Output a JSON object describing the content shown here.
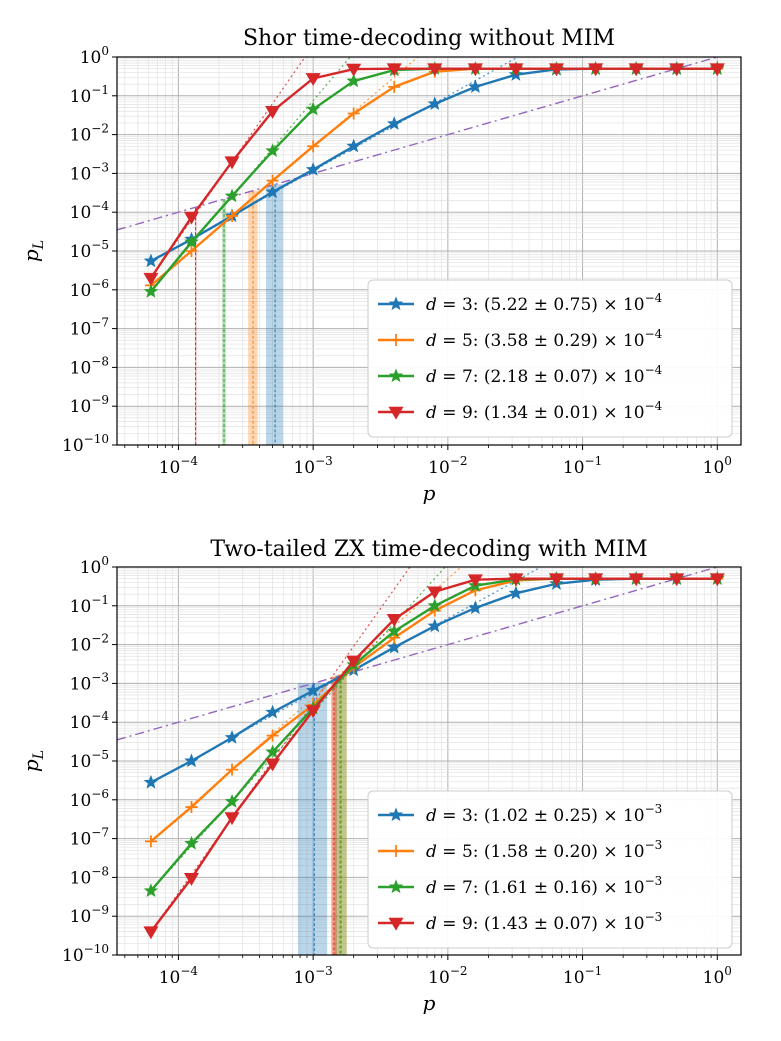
{
  "chart_data": [
    {
      "type": "line",
      "title": "Shor time-decoding without MIM",
      "xlabel": "p",
      "ylabel": "p_L",
      "xscale": "log",
      "yscale": "log",
      "xlim": [
        3.5e-05,
        1.5
      ],
      "ylim": [
        1e-10,
        1
      ],
      "xticks": [
        {
          "base": "10",
          "exp": "−4",
          "value": 0.0001
        },
        {
          "base": "10",
          "exp": "−3",
          "value": 0.001
        },
        {
          "base": "10",
          "exp": "−2",
          "value": 0.01
        },
        {
          "base": "10",
          "exp": "−1",
          "value": 0.1
        },
        {
          "base": "10",
          "exp": "0",
          "value": 1
        }
      ],
      "yticks": [
        {
          "base": "10",
          "exp": "−10",
          "value": 1e-10
        },
        {
          "base": "10",
          "exp": "−9",
          "value": 1e-09
        },
        {
          "base": "10",
          "exp": "−8",
          "value": 1e-08
        },
        {
          "base": "10",
          "exp": "−7",
          "value": 1e-07
        },
        {
          "base": "10",
          "exp": "−6",
          "value": 1e-06
        },
        {
          "base": "10",
          "exp": "−5",
          "value": 1e-05
        },
        {
          "base": "10",
          "exp": "−4",
          "value": 0.0001
        },
        {
          "base": "10",
          "exp": "−3",
          "value": 0.001
        },
        {
          "base": "10",
          "exp": "−2",
          "value": 0.01
        },
        {
          "base": "10",
          "exp": "−1",
          "value": 0.1
        },
        {
          "base": "10",
          "exp": "0",
          "value": 1
        }
      ],
      "legend_position": "lower-right",
      "reference_line": {
        "name": "p_L = p",
        "style": "dash-dot",
        "color": "#9467bd"
      },
      "series": [
        {
          "name": "d = 3",
          "label_left": "d = 3: ",
          "label_value": "(5.22 ± 0.75) × 10",
          "label_exp": "−4",
          "color": "#1f77b4",
          "marker": "star",
          "x": [
            6.25e-05,
            0.000125,
            0.00025,
            0.0005,
            0.001,
            0.002,
            0.004,
            0.008,
            0.016,
            0.032,
            0.064,
            0.125,
            0.25,
            0.5,
            1.0
          ],
          "y": [
            5.5e-06,
            2e-05,
            8e-05,
            0.00033,
            0.00125,
            0.005,
            0.019,
            0.062,
            0.17,
            0.35,
            0.48,
            0.5,
            0.5,
            0.5,
            0.5
          ],
          "threshold": 0.000522,
          "threshold_band": [
            0.000447,
            0.000597
          ]
        },
        {
          "name": "d = 5",
          "label_left": "d = 5: ",
          "label_value": "(3.58 ± 0.29) × 10",
          "label_exp": "−4",
          "color": "#ff7f0e",
          "marker": "plus",
          "x": [
            6.25e-05,
            0.000125,
            0.00025,
            0.0005,
            0.001,
            0.002,
            0.004,
            0.008,
            0.016,
            0.032,
            0.064,
            0.125,
            0.25,
            0.5,
            1.0
          ],
          "y": [
            1.3e-06,
            1e-05,
            8e-05,
            0.00065,
            0.005,
            0.035,
            0.17,
            0.42,
            0.5,
            0.5,
            0.5,
            0.5,
            0.5,
            0.5,
            0.5
          ],
          "threshold": 0.000358,
          "threshold_band": [
            0.000329,
            0.000387
          ]
        },
        {
          "name": "d = 7",
          "label_left": "d = 7: ",
          "label_value": "(2.18 ± 0.07) × 10",
          "label_exp": "−4",
          "color": "#2ca02c",
          "marker": "star",
          "x": [
            6.25e-05,
            0.000125,
            0.00025,
            0.0005,
            0.001,
            0.002,
            0.004,
            0.008,
            0.016,
            0.032,
            0.064,
            0.125,
            0.25,
            0.5,
            1.0
          ],
          "y": [
            9e-07,
            1.7e-05,
            0.00026,
            0.0038,
            0.045,
            0.24,
            0.46,
            0.5,
            0.5,
            0.5,
            0.5,
            0.5,
            0.5,
            0.5,
            0.5
          ],
          "threshold": 0.000218,
          "threshold_band": [
            0.000211,
            0.000225
          ]
        },
        {
          "name": "d = 9",
          "label_left": "d = 9: ",
          "label_value": "(1.34 ± 0.01) × 10",
          "label_exp": "−4",
          "color": "#d62728",
          "marker": "triangle-down",
          "x": [
            6.25e-05,
            0.000125,
            0.00025,
            0.0005,
            0.001,
            0.002,
            0.004,
            0.008,
            0.016,
            0.032,
            0.064,
            0.125,
            0.25,
            0.5,
            1.0
          ],
          "y": [
            2e-06,
            7.5e-05,
            0.002,
            0.04,
            0.28,
            0.49,
            0.5,
            0.5,
            0.5,
            0.5,
            0.5,
            0.5,
            0.5,
            0.5,
            0.5
          ],
          "threshold": 0.000134,
          "threshold_band": [
            0.000133,
            0.000135
          ]
        }
      ]
    },
    {
      "type": "line",
      "title": "Two-tailed ZX time-decoding with MIM",
      "xlabel": "p",
      "ylabel": "p_L",
      "xscale": "log",
      "yscale": "log",
      "xlim": [
        3.5e-05,
        1.5
      ],
      "ylim": [
        1e-10,
        1
      ],
      "xticks": [
        {
          "base": "10",
          "exp": "−4",
          "value": 0.0001
        },
        {
          "base": "10",
          "exp": "−3",
          "value": 0.001
        },
        {
          "base": "10",
          "exp": "−2",
          "value": 0.01
        },
        {
          "base": "10",
          "exp": "−1",
          "value": 0.1
        },
        {
          "base": "10",
          "exp": "0",
          "value": 1
        }
      ],
      "yticks": [
        {
          "base": "10",
          "exp": "−10",
          "value": 1e-10
        },
        {
          "base": "10",
          "exp": "−9",
          "value": 1e-09
        },
        {
          "base": "10",
          "exp": "−8",
          "value": 1e-08
        },
        {
          "base": "10",
          "exp": "−7",
          "value": 1e-07
        },
        {
          "base": "10",
          "exp": "−6",
          "value": 1e-06
        },
        {
          "base": "10",
          "exp": "−5",
          "value": 1e-05
        },
        {
          "base": "10",
          "exp": "−4",
          "value": 0.0001
        },
        {
          "base": "10",
          "exp": "−3",
          "value": 0.001
        },
        {
          "base": "10",
          "exp": "−2",
          "value": 0.01
        },
        {
          "base": "10",
          "exp": "−1",
          "value": 0.1
        },
        {
          "base": "10",
          "exp": "0",
          "value": 1
        }
      ],
      "legend_position": "lower-right",
      "reference_line": {
        "name": "p_L = p",
        "style": "dash-dot",
        "color": "#9467bd"
      },
      "series": [
        {
          "name": "d = 3",
          "label_left": "d = 3: ",
          "label_value": "(1.02 ± 0.25) × 10",
          "label_exp": "−3",
          "color": "#1f77b4",
          "marker": "star",
          "x": [
            6.25e-05,
            0.000125,
            0.00025,
            0.0005,
            0.001,
            0.002,
            0.004,
            0.008,
            0.016,
            0.032,
            0.064,
            0.125,
            0.25,
            0.5,
            1.0
          ],
          "y": [
            2.8e-06,
            1e-05,
            4e-05,
            0.00018,
            0.00065,
            0.0022,
            0.0085,
            0.03,
            0.088,
            0.21,
            0.37,
            0.47,
            0.5,
            0.5,
            0.5
          ],
          "threshold": 0.00102,
          "threshold_band": [
            0.00077,
            0.00127
          ]
        },
        {
          "name": "d = 5",
          "label_left": "d = 5: ",
          "label_value": "(1.58 ± 0.20) × 10",
          "label_exp": "−3",
          "color": "#ff7f0e",
          "marker": "plus",
          "x": [
            6.25e-05,
            0.000125,
            0.00025,
            0.0005,
            0.001,
            0.002,
            0.004,
            0.008,
            0.016,
            0.032,
            0.064,
            0.125,
            0.25,
            0.5,
            1.0
          ],
          "y": [
            8.5e-08,
            6.5e-07,
            6e-06,
            4.5e-05,
            0.00028,
            0.0026,
            0.015,
            0.075,
            0.25,
            0.45,
            0.5,
            0.5,
            0.5,
            0.5,
            0.5
          ],
          "threshold": 0.00158,
          "threshold_band": [
            0.00138,
            0.00178
          ]
        },
        {
          "name": "d = 7",
          "label_left": "d = 7: ",
          "label_value": "(1.61 ± 0.16) × 10",
          "label_exp": "−3",
          "color": "#2ca02c",
          "marker": "star",
          "x": [
            6.25e-05,
            0.000125,
            0.00025,
            0.0005,
            0.001,
            0.002,
            0.004,
            0.008,
            0.016,
            0.032,
            0.064,
            0.125,
            0.25,
            0.5,
            1.0
          ],
          "y": [
            4.5e-09,
            7.5e-08,
            9e-07,
            1.7e-05,
            0.00023,
            0.003,
            0.022,
            0.1,
            0.33,
            0.48,
            0.5,
            0.5,
            0.5,
            0.5,
            0.5
          ],
          "threshold": 0.00161,
          "threshold_band": [
            0.00145,
            0.00177
          ]
        },
        {
          "name": "d = 9",
          "label_left": "d = 9: ",
          "label_value": "(1.43 ± 0.07) × 10",
          "label_exp": "−3",
          "color": "#d62728",
          "marker": "triangle-down",
          "x": [
            6.25e-05,
            0.000125,
            0.00025,
            0.0005,
            0.001,
            0.002,
            0.004,
            0.008,
            0.016,
            0.032,
            0.064,
            0.125,
            0.25,
            0.5,
            1.0
          ],
          "y": [
            4e-10,
            9.5e-09,
            3.5e-07,
            8.5e-06,
            0.0002,
            0.0038,
            0.045,
            0.23,
            0.47,
            0.5,
            0.5,
            0.5,
            0.5,
            0.5,
            0.5
          ],
          "threshold": 0.00143,
          "threshold_band": [
            0.00136,
            0.0015
          ]
        }
      ]
    }
  ]
}
